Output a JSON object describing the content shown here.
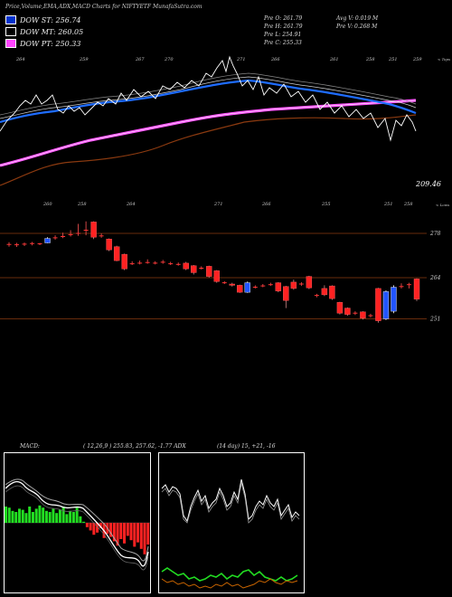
{
  "header": {
    "title": "Price,Volume,EMA,ADX,MACD Charts for NIFTYETF MunafaSutra.com"
  },
  "legend": [
    {
      "label": "DOW ST: 256.74",
      "color": "#0033cc"
    },
    {
      "label": "DOW MT: 260.05",
      "color": "#000000"
    },
    {
      "label": "DOW PT: 250.33",
      "color": "#ff44ff"
    }
  ],
  "stats": {
    "pre_o": "Pre  O: 261.79",
    "pre_h": "Pre  H: 261.79",
    "pre_l": "Pre  L: 254.91",
    "pre_c": "Pre  C: 255.33",
    "avg_v": "Avg V: 0.019 M",
    "pre_v": "Pre  V: 0.268 M"
  },
  "colors": {
    "up": "#2255ff",
    "down": "#ff2222",
    "doji": "#ff3333",
    "ema_fast": "#1e6cff",
    "ema_slow": "#ffffff",
    "ema_long": "#8b3a10",
    "pt_line": "#ff66ff",
    "grid": "#8b3a10"
  },
  "chart_data": [
    {
      "type": "candlestick",
      "title": "Price,Volume,EMA,ADX,MACD Charts for NIFTYETF MunafaSutra.com",
      "y_tick_labels": [
        "278",
        "264",
        "251"
      ],
      "y_ticks": [
        278,
        264,
        251
      ],
      "ylim": [
        240,
        285
      ],
      "top_labels": [
        "264",
        "259",
        "267",
        "270",
        "271",
        "266",
        "261",
        "258",
        "251",
        "259"
      ],
      "top_label_x": [
        18,
        88,
        150,
        182,
        262,
        300,
        365,
        405,
        430,
        457
      ],
      "top_right_label": "< Tops",
      "bottom_labels": [
        "260",
        "258",
        "264",
        "271",
        "266",
        "255",
        "251",
        "258"
      ],
      "bottom_label_x": [
        48,
        86,
        140,
        237,
        290,
        356,
        425,
        447
      ],
      "bottom_right_label": "< Lows",
      "price_label": "209.46",
      "candles": [
        {
          "o": 274.5,
          "c": 274.5,
          "h": 275.2,
          "l": 273.8
        },
        {
          "o": 274.4,
          "c": 274.4,
          "h": 275.0,
          "l": 273.7
        },
        {
          "o": 274.6,
          "c": 274.6,
          "h": 275.1,
          "l": 274.0
        },
        {
          "o": 274.8,
          "c": 274.8,
          "h": 275.3,
          "l": 274.2
        },
        {
          "o": 274.7,
          "c": 274.7,
          "h": 275.0,
          "l": 274.3
        },
        {
          "o": 275.0,
          "c": 276.4,
          "h": 276.8,
          "l": 274.9
        },
        {
          "o": 276.6,
          "c": 276.6,
          "h": 277.4,
          "l": 276.0
        },
        {
          "o": 277.0,
          "c": 277.0,
          "h": 278.2,
          "l": 276.5
        },
        {
          "o": 277.6,
          "c": 277.6,
          "h": 279.0,
          "l": 277.0
        },
        {
          "o": 278.0,
          "c": 278.0,
          "h": 281.0,
          "l": 277.2
        },
        {
          "o": 279.0,
          "c": 279.0,
          "h": 281.8,
          "l": 277.4
        },
        {
          "o": 281.6,
          "c": 276.8,
          "h": 281.8,
          "l": 276.2
        },
        {
          "o": 277.2,
          "c": 277.2,
          "h": 278.0,
          "l": 276.6
        },
        {
          "o": 276.2,
          "c": 272.8,
          "h": 276.4,
          "l": 272.4
        },
        {
          "o": 273.8,
          "c": 269.4,
          "h": 274.1,
          "l": 269.2
        },
        {
          "o": 271.4,
          "c": 266.8,
          "h": 271.6,
          "l": 266.4
        },
        {
          "o": 268.4,
          "c": 268.4,
          "h": 269.2,
          "l": 268.0
        },
        {
          "o": 268.6,
          "c": 268.6,
          "h": 269.4,
          "l": 268.2
        },
        {
          "o": 268.8,
          "c": 268.8,
          "h": 269.8,
          "l": 268.4
        },
        {
          "o": 268.6,
          "c": 268.6,
          "h": 269.2,
          "l": 268.2
        },
        {
          "o": 268.9,
          "c": 268.9,
          "h": 269.6,
          "l": 268.4
        },
        {
          "o": 268.4,
          "c": 268.4,
          "h": 269.0,
          "l": 268.0
        },
        {
          "o": 268.2,
          "c": 268.2,
          "h": 268.8,
          "l": 267.8
        },
        {
          "o": 268.6,
          "c": 266.8,
          "h": 269.0,
          "l": 266.4
        },
        {
          "o": 267.8,
          "c": 265.6,
          "h": 268.0,
          "l": 265.0
        },
        {
          "o": 267.0,
          "c": 267.0,
          "h": 267.6,
          "l": 266.6
        },
        {
          "o": 267.6,
          "c": 264.4,
          "h": 267.8,
          "l": 264.0
        },
        {
          "o": 266.2,
          "c": 262.8,
          "h": 266.4,
          "l": 262.4
        },
        {
          "o": 262.4,
          "c": 262.4,
          "h": 262.9,
          "l": 262.0
        },
        {
          "o": 262.0,
          "c": 261.6,
          "h": 262.4,
          "l": 261.2
        },
        {
          "o": 261.6,
          "c": 259.4,
          "h": 261.8,
          "l": 259.2
        },
        {
          "o": 259.4,
          "c": 262.4,
          "h": 262.8,
          "l": 259.2
        },
        {
          "o": 261.0,
          "c": 261.0,
          "h": 261.6,
          "l": 260.6
        },
        {
          "o": 261.4,
          "c": 261.4,
          "h": 262.0,
          "l": 261.0
        },
        {
          "o": 261.8,
          "c": 261.8,
          "h": 262.4,
          "l": 261.4
        },
        {
          "o": 262.4,
          "c": 259.8,
          "h": 262.6,
          "l": 259.4
        },
        {
          "o": 261.2,
          "c": 256.8,
          "h": 261.4,
          "l": 254.4
        },
        {
          "o": 262.6,
          "c": 260.6,
          "h": 263.4,
          "l": 260.2
        },
        {
          "o": 262.0,
          "c": 262.0,
          "h": 262.6,
          "l": 261.4
        },
        {
          "o": 264.4,
          "c": 260.8,
          "h": 264.6,
          "l": 260.4
        },
        {
          "o": 258.4,
          "c": 258.4,
          "h": 258.9,
          "l": 257.8
        },
        {
          "o": 260.6,
          "c": 258.6,
          "h": 261.6,
          "l": 258.2
        },
        {
          "o": 261.4,
          "c": 257.4,
          "h": 261.6,
          "l": 257.0
        },
        {
          "o": 256.2,
          "c": 252.8,
          "h": 256.4,
          "l": 252.4
        },
        {
          "o": 254.4,
          "c": 252.4,
          "h": 254.6,
          "l": 252.0
        },
        {
          "o": 252.8,
          "c": 252.8,
          "h": 253.4,
          "l": 252.2
        },
        {
          "o": 253.2,
          "c": 251.2,
          "h": 253.4,
          "l": 250.8
        },
        {
          "o": 252.0,
          "c": 252.0,
          "h": 252.6,
          "l": 251.4
        },
        {
          "o": 260.6,
          "c": 250.4,
          "h": 260.8,
          "l": 249.8
        },
        {
          "o": 251.0,
          "c": 259.6,
          "h": 260.0,
          "l": 250.6
        },
        {
          "o": 253.4,
          "c": 261.0,
          "h": 261.6,
          "l": 252.8
        },
        {
          "o": 261.2,
          "c": 261.2,
          "h": 262.2,
          "l": 260.6
        },
        {
          "o": 261.8,
          "c": 261.8,
          "h": 262.4,
          "l": 260.6
        },
        {
          "o": 263.6,
          "c": 257.2,
          "h": 263.8,
          "l": 256.6
        }
      ]
    },
    {
      "type": "line",
      "title": "MACD",
      "header_label": "MACD:",
      "header_values": "( 12,26,9 ) 255.83,  257.62, -1.77 ADX",
      "series": [
        {
          "values": [
            0.3,
            0.28,
            0.22,
            0.2,
            0.26,
            0.24,
            0.18,
            0.3,
            0.2,
            0.26,
            0.32,
            0.28,
            0.22,
            0.2,
            0.26,
            0.18,
            0.24,
            0.3,
            0.16,
            0.22,
            0.2,
            0.28,
            0.12,
            0.02,
            -0.08,
            -0.14,
            -0.22,
            -0.18,
            -0.1,
            -0.28,
            -0.2,
            -0.26,
            -0.34,
            -0.42,
            -0.3,
            -0.38,
            -0.24,
            -0.32,
            -0.44,
            -0.36,
            -0.48,
            -0.58,
            -0.4
          ]
        }
      ]
    },
    {
      "type": "line",
      "title": "ADX",
      "header_values": "(14  day) 15,  +21,  -16"
    }
  ]
}
